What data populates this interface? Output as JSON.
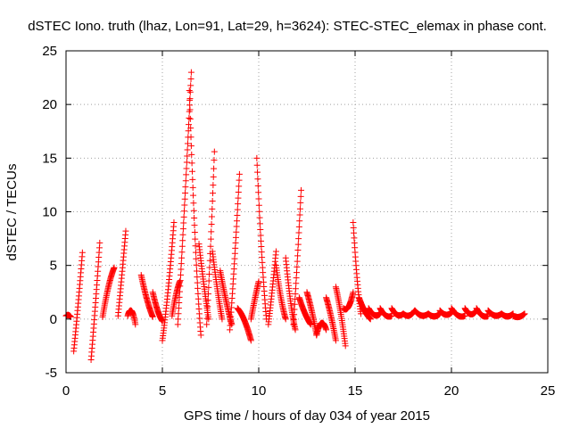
{
  "chart_data": {
    "type": "scatter",
    "title": "dSTEC Iono. truth (lhaz, Lon=91, Lat=29, h=3624): STEC-STEC_elemax in phase cont.",
    "xlabel": "GPS time / hours of day 034 of year 2015",
    "ylabel": "dSTEC  / TECUs",
    "xlim": [
      0,
      25
    ],
    "ylim": [
      -5,
      25
    ],
    "x_ticks": [
      "0",
      "5",
      "10",
      "15",
      "20",
      "25"
    ],
    "y_ticks": [
      "-5",
      "0",
      "5",
      "10",
      "15",
      "20",
      "25"
    ],
    "grid": true,
    "marker": "+",
    "color": "#ff0000",
    "arcs": [
      {
        "start": 0.0,
        "end": 0.25,
        "v0": 0.3,
        "peak": 0.5,
        "v1": 0.2
      },
      {
        "start": 0.4,
        "end": 0.85,
        "v0": -3.0,
        "peak": 1.0,
        "v1": 6.2
      },
      {
        "start": 1.3,
        "end": 1.75,
        "v0": -3.8,
        "peak": 1.0,
        "v1": 7.1
      },
      {
        "start": 1.9,
        "end": 2.5,
        "v0": 0.2,
        "peak": 3.5,
        "v1": 4.8
      },
      {
        "start": 2.7,
        "end": 3.1,
        "v0": 0.3,
        "peak": 4.0,
        "v1": 8.2
      },
      {
        "start": 3.2,
        "end": 3.6,
        "v0": 0.3,
        "peak": 1.6,
        "v1": -0.5
      },
      {
        "start": 3.9,
        "end": 4.5,
        "v0": 4.1,
        "peak": 1.5,
        "v1": 0.2
      },
      {
        "start": 4.5,
        "end": 5.0,
        "v0": 2.5,
        "peak": 0.5,
        "v1": -0.2
      },
      {
        "start": 5.0,
        "end": 5.6,
        "v0": -2.0,
        "peak": 2.0,
        "v1": 9.0
      },
      {
        "start": 5.5,
        "end": 5.9,
        "v0": 0.3,
        "peak": 2.5,
        "v1": 3.5
      },
      {
        "start": 5.8,
        "end": 6.5,
        "v0": -0.5,
        "peak": 10.0,
        "v1": 23.0
      },
      {
        "start": 6.4,
        "end": 7.0,
        "v0": 21.3,
        "peak": 5.0,
        "v1": -1.5
      },
      {
        "start": 6.9,
        "end": 7.4,
        "v0": 7.0,
        "peak": 3.0,
        "v1": 0.0
      },
      {
        "start": 7.3,
        "end": 7.7,
        "v0": -0.5,
        "peak": 6.0,
        "v1": 15.6
      },
      {
        "start": 7.6,
        "end": 8.1,
        "v0": 6.3,
        "peak": 2.5,
        "v1": 0.0
      },
      {
        "start": 8.0,
        "end": 8.6,
        "v0": 4.5,
        "peak": 1.5,
        "v1": -0.5
      },
      {
        "start": 8.5,
        "end": 9.0,
        "v0": -1.0,
        "peak": 5.0,
        "v1": 13.5
      },
      {
        "start": 8.9,
        "end": 9.6,
        "v0": 1.0,
        "peak": 0.3,
        "v1": -2.0
      },
      {
        "start": 9.6,
        "end": 10.0,
        "v0": 0.0,
        "peak": 2.0,
        "v1": 3.5
      },
      {
        "start": 9.9,
        "end": 10.4,
        "v0": 15.0,
        "peak": 5.0,
        "v1": 0.0
      },
      {
        "start": 10.5,
        "end": 10.9,
        "v0": -0.5,
        "peak": 2.5,
        "v1": 6.3
      },
      {
        "start": 10.9,
        "end": 11.4,
        "v0": 5.0,
        "peak": 1.5,
        "v1": 0.0
      },
      {
        "start": 11.4,
        "end": 11.9,
        "v0": 5.7,
        "peak": 1.0,
        "v1": -1.0
      },
      {
        "start": 11.8,
        "end": 12.2,
        "v0": -0.5,
        "peak": 5.0,
        "v1": 12.0
      },
      {
        "start": 12.1,
        "end": 12.7,
        "v0": 2.0,
        "peak": 0.3,
        "v1": -0.5
      },
      {
        "start": 12.5,
        "end": 13.0,
        "v0": 2.5,
        "peak": 1.0,
        "v1": -1.5
      },
      {
        "start": 13.0,
        "end": 13.5,
        "v0": -1.5,
        "peak": 0.5,
        "v1": -1.0
      },
      {
        "start": 13.5,
        "end": 14.0,
        "v0": 2.0,
        "peak": 0.5,
        "v1": -2.0
      },
      {
        "start": 14.0,
        "end": 14.5,
        "v0": 3.0,
        "peak": 1.0,
        "v1": -2.5
      },
      {
        "start": 14.4,
        "end": 14.9,
        "v0": 1.0,
        "peak": 0.5,
        "v1": 2.5
      },
      {
        "start": 14.9,
        "end": 15.3,
        "v0": 9.0,
        "peak": 3.0,
        "v1": 0.5
      },
      {
        "start": 15.2,
        "end": 15.8,
        "v0": 2.0,
        "peak": 0.5,
        "v1": 0.0
      },
      {
        "start": 15.7,
        "end": 16.3,
        "v0": 1.0,
        "peak": 0.0,
        "v1": 0.5
      },
      {
        "start": 16.3,
        "end": 16.9,
        "v0": 1.0,
        "peak": 0.0,
        "v1": 0.3
      },
      {
        "start": 16.9,
        "end": 17.5,
        "v0": 1.0,
        "peak": 0.0,
        "v1": 0.5
      },
      {
        "start": 17.5,
        "end": 18.1,
        "v0": 0.5,
        "peak": 0.0,
        "v1": 0.8
      },
      {
        "start": 18.1,
        "end": 18.8,
        "v0": 0.8,
        "peak": 0.0,
        "v1": 0.5
      },
      {
        "start": 18.8,
        "end": 19.4,
        "v0": 0.5,
        "peak": 0.0,
        "v1": 0.5
      },
      {
        "start": 19.4,
        "end": 20.1,
        "v0": 0.8,
        "peak": 0.0,
        "v1": 0.8
      },
      {
        "start": 20.0,
        "end": 20.7,
        "v0": 1.0,
        "peak": 0.0,
        "v1": 0.3
      },
      {
        "start": 20.7,
        "end": 21.3,
        "v0": 1.0,
        "peak": 0.0,
        "v1": 0.8
      },
      {
        "start": 21.3,
        "end": 21.9,
        "v0": 1.0,
        "peak": 0.0,
        "v1": 0.3
      },
      {
        "start": 21.9,
        "end": 22.6,
        "v0": 0.8,
        "peak": 0.0,
        "v1": 0.5
      },
      {
        "start": 22.6,
        "end": 23.2,
        "v0": 0.5,
        "peak": 0.0,
        "v1": 0.5
      },
      {
        "start": 23.2,
        "end": 23.8,
        "v0": 0.3,
        "peak": 0.0,
        "v1": 0.5
      }
    ]
  }
}
